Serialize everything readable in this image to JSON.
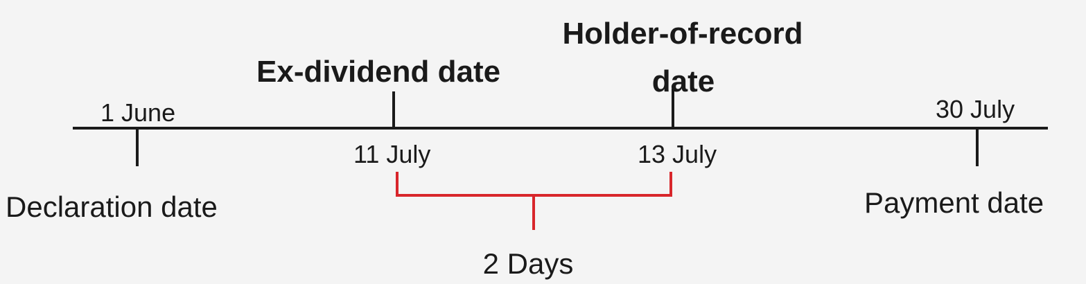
{
  "timeline": {
    "events": [
      {
        "id": "declaration",
        "date": "1 June",
        "label": "Declaration date"
      },
      {
        "id": "ex-dividend",
        "date": "11 July",
        "label": "Ex-dividend date"
      },
      {
        "id": "holder-of-record",
        "date": "13 July",
        "label_line1": "Holder-of-record",
        "label_line2": "date"
      },
      {
        "id": "payment",
        "date": "30 July",
        "label": "Payment date"
      }
    ],
    "interval": {
      "from": "11 July",
      "to": "13 July",
      "label": "2 Days",
      "color": "#d8262b"
    }
  }
}
